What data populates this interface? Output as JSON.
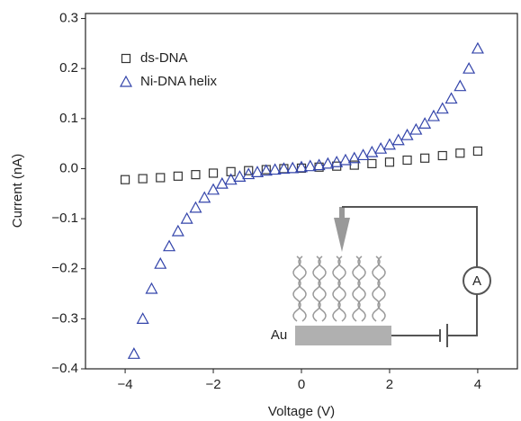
{
  "chart_data": {
    "type": "scatter",
    "x_label": "Voltage (V)",
    "y_label": "Current (nA)",
    "xlim": [
      -4.9,
      4.9
    ],
    "ylim": [
      -0.4,
      0.31
    ],
    "xticks": [
      {
        "value": -4,
        "label": "−4"
      },
      {
        "value": -2,
        "label": "−2"
      },
      0,
      2,
      4
    ],
    "yticks": [
      0.3,
      0.2,
      0.1,
      {
        "value": 0,
        "label": "0.0"
      },
      {
        "value": -0.1,
        "label": "−0.1"
      },
      {
        "value": -0.2,
        "label": "−0.2"
      },
      {
        "value": -0.3,
        "label": "−0.3"
      },
      {
        "value": -0.4,
        "label": "−0.4"
      }
    ],
    "legend": "upper left",
    "annotations": [
      "Au",
      "A"
    ],
    "series": [
      {
        "name": "ds-DNA",
        "color": "#333333",
        "marker": "square",
        "x": [
          -4,
          -3.6,
          -3.2,
          -2.8,
          -2.4,
          -2.0,
          -1.6,
          -1.2,
          -0.8,
          -0.4,
          0,
          0.4,
          0.8,
          1.2,
          1.6,
          2.0,
          2.4,
          2.8,
          3.2,
          3.6,
          4.0
        ],
        "values": [
          -0.022,
          -0.02,
          -0.018,
          -0.015,
          -0.012,
          -0.009,
          -0.006,
          -0.004,
          -0.002,
          0.0,
          0.001,
          0.003,
          0.005,
          0.007,
          0.01,
          0.013,
          0.017,
          0.021,
          0.026,
          0.031,
          0.035
        ]
      },
      {
        "name": "Ni-DNA helix",
        "color": "#3344aa",
        "marker": "triangle",
        "x": [
          -3.8,
          -3.6,
          -3.4,
          -3.2,
          -3.0,
          -2.8,
          -2.6,
          -2.4,
          -2.2,
          -2.0,
          -1.8,
          -1.6,
          -1.4,
          -1.2,
          -1.0,
          -0.8,
          -0.6,
          -0.4,
          -0.2,
          0,
          0.2,
          0.4,
          0.6,
          0.8,
          1.0,
          1.2,
          1.4,
          1.6,
          1.8,
          2.0,
          2.2,
          2.4,
          2.6,
          2.8,
          3.0,
          3.2,
          3.4,
          3.6,
          3.8,
          4.0
        ],
        "values": [
          -0.37,
          -0.3,
          -0.24,
          -0.19,
          -0.155,
          -0.125,
          -0.1,
          -0.078,
          -0.058,
          -0.042,
          -0.03,
          -0.022,
          -0.016,
          -0.011,
          -0.007,
          -0.004,
          -0.002,
          0.0,
          0.001,
          0.003,
          0.005,
          0.007,
          0.01,
          0.013,
          0.017,
          0.021,
          0.027,
          0.033,
          0.04,
          0.048,
          0.057,
          0.067,
          0.078,
          0.09,
          0.105,
          0.12,
          0.14,
          0.165,
          0.2,
          0.24
        ]
      }
    ]
  }
}
